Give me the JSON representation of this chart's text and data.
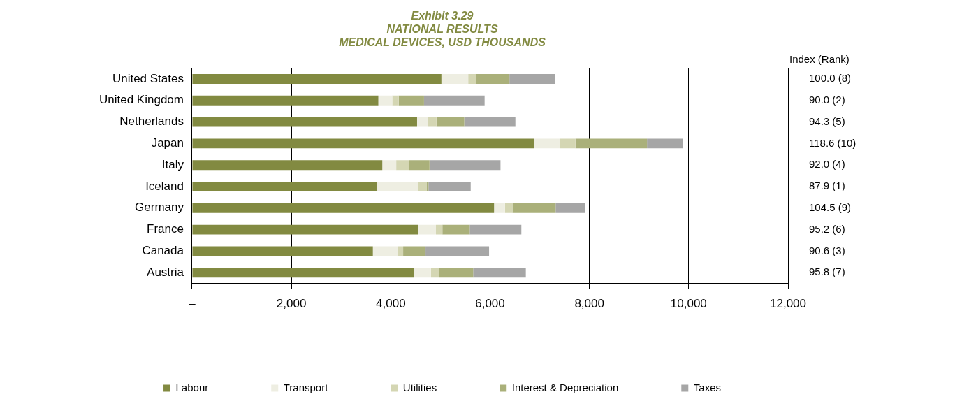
{
  "chart_data": {
    "type": "bar",
    "orientation": "horizontal",
    "stacked": true,
    "title": "Exhibit 3.29\nNATIONAL RESULTS\nMEDICAL DEVICES, USD THOUSANDS",
    "categories": [
      "United States",
      "United Kingdom",
      "Netherlands",
      "Japan",
      "Italy",
      "Iceland",
      "Germany",
      "France",
      "Canada",
      "Austria"
    ],
    "series": [
      {
        "name": "Labour",
        "color": "#828a41",
        "values": [
          5020,
          3750,
          4530,
          6890,
          3830,
          3720,
          6080,
          4550,
          3640,
          4470
        ]
      },
      {
        "name": "Transport",
        "color": "#eeeee2",
        "values": [
          540,
          280,
          220,
          510,
          280,
          830,
          220,
          360,
          510,
          340
        ]
      },
      {
        "name": "Utilities",
        "color": "#d4d6b3",
        "values": [
          160,
          130,
          170,
          320,
          260,
          170,
          150,
          130,
          100,
          170
        ]
      },
      {
        "name": "Interest & Depreciation",
        "color": "#aab07a",
        "values": [
          670,
          510,
          560,
          1440,
          410,
          40,
          870,
          550,
          450,
          680
        ]
      },
      {
        "name": "Taxes",
        "color": "#a6a6a6",
        "values": [
          920,
          1220,
          1030,
          730,
          1430,
          850,
          600,
          1040,
          1280,
          1060
        ]
      }
    ],
    "xlim": [
      0,
      12000
    ],
    "xticks": [
      {
        "value": 0,
        "label": "–"
      },
      {
        "value": 2000,
        "label": "2,000"
      },
      {
        "value": 4000,
        "label": "4,000"
      },
      {
        "value": 6000,
        "label": "6,000"
      },
      {
        "value": 8000,
        "label": "8,000"
      },
      {
        "value": 10000,
        "label": "10,000"
      },
      {
        "value": 12000,
        "label": "12,000"
      }
    ],
    "grid": "x",
    "legend": "bottom",
    "annotations": [
      "Index (Rank)",
      "100.0 (8)",
      "90.0 (2)",
      "94.3 (5)",
      "118.6 (10)",
      "92.0 (4)",
      "87.9 (1)",
      "104.5 (9)",
      "95.2 (6)",
      "90.6 (3)",
      "95.8 (7)"
    ]
  }
}
